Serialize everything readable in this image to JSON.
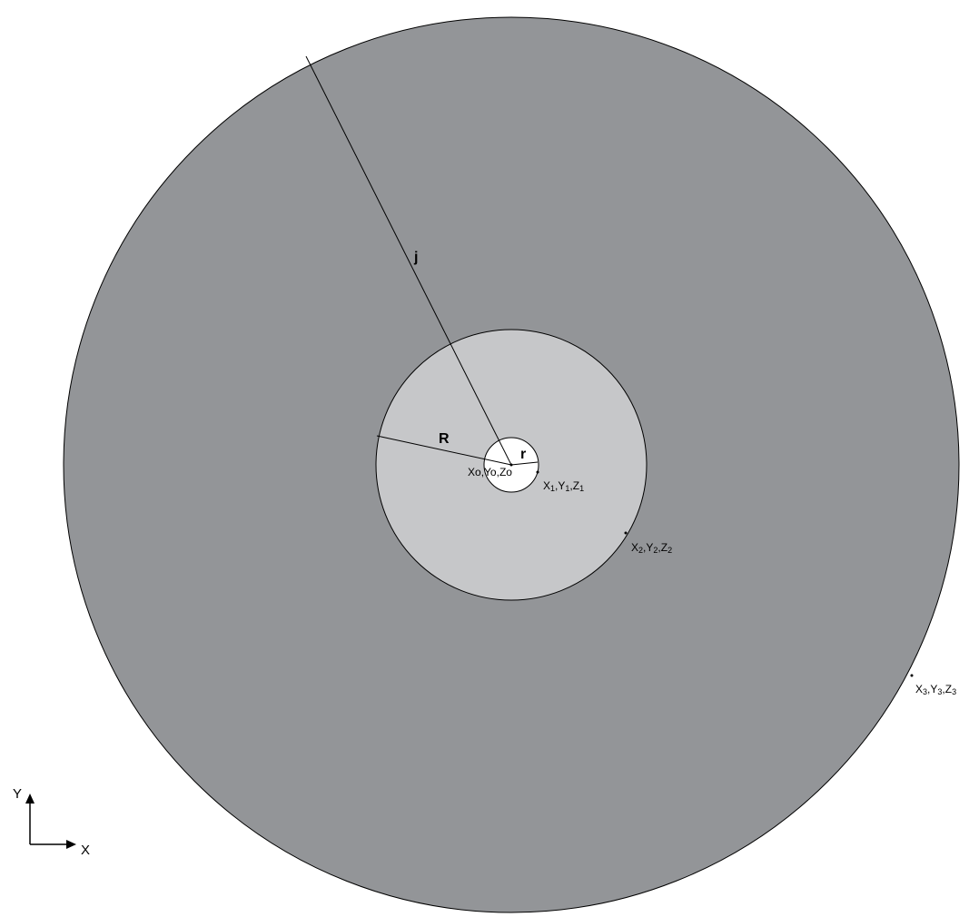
{
  "labels": {
    "j": "j",
    "R": "R",
    "r": "r",
    "p0": {
      "X": "Xo",
      "Y": "Yo",
      "Z": "Zo"
    },
    "p1": {
      "X": "X",
      "Y": "Y",
      "Z": "Z",
      "sub": "1"
    },
    "p2": {
      "X": "X",
      "Y": "Y",
      "Z": "Z",
      "sub": "2"
    },
    "p3": {
      "X": "X",
      "Y": "Y",
      "Z": "Z",
      "sub": "3"
    },
    "sep": ","
  },
  "axes": {
    "x": "X",
    "y": "Y"
  },
  "colors": {
    "outer_disc": "#939598",
    "middle_disc": "#c6c7c9",
    "inner_disc": "#ffffff",
    "stroke": "#000000"
  }
}
